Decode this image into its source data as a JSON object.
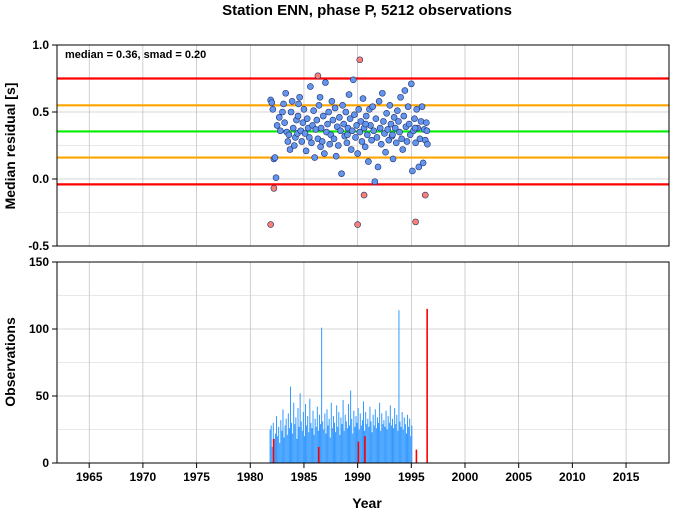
{
  "chart_data": [
    {
      "type": "scatter",
      "title": "Station ENN, phase P, 5212 observations",
      "annotation": "median = 0.36, smad = 0.20",
      "xlabel": "",
      "ylabel": "Median residual [s]",
      "xlim": [
        1962,
        2019
      ],
      "ylim": [
        -0.5,
        1.0
      ],
      "yticks": [
        -0.5,
        0.0,
        0.5,
        1.0
      ],
      "ytick_labels": [
        "-0.5",
        "0.0",
        "0.5",
        "1.0"
      ],
      "grid": true,
      "reference_lines": [
        {
          "y": 0.75,
          "color": "#ff0000"
        },
        {
          "y": 0.55,
          "color": "#ffa500"
        },
        {
          "y": 0.355,
          "color": "#00ee00"
        },
        {
          "y": 0.16,
          "color": "#ffa500"
        },
        {
          "y": -0.04,
          "color": "#ff0000"
        }
      ],
      "series": [
        {
          "color": "#6495ed",
          "points": [
            [
              1981.9,
              0.59
            ],
            [
              1982.0,
              0.57
            ],
            [
              1982.1,
              0.52
            ],
            [
              1982.2,
              0.15
            ],
            [
              1982.3,
              0.16
            ],
            [
              1982.5,
              0.4
            ],
            [
              1982.7,
              0.46
            ],
            [
              1982.8,
              0.36
            ],
            [
              1983.0,
              0.5
            ],
            [
              1983.1,
              0.56
            ],
            [
              1983.2,
              0.42
            ],
            [
              1983.3,
              0.64
            ],
            [
              1983.4,
              0.35
            ],
            [
              1983.5,
              0.28
            ],
            [
              1983.6,
              0.33
            ],
            [
              1983.7,
              0.22
            ],
            [
              1983.8,
              0.5
            ],
            [
              1983.9,
              0.58
            ],
            [
              1984.0,
              0.38
            ],
            [
              1984.1,
              0.25
            ],
            [
              1984.2,
              0.31
            ],
            [
              1984.3,
              0.44
            ],
            [
              1984.4,
              0.34
            ],
            [
              1984.5,
              0.56
            ],
            [
              1984.6,
              0.61
            ],
            [
              1984.7,
              0.36
            ],
            [
              1984.8,
              0.28
            ],
            [
              1984.9,
              0.42
            ],
            [
              1985.0,
              0.52
            ],
            [
              1985.1,
              0.34
            ],
            [
              1985.2,
              0.21
            ],
            [
              1985.3,
              0.45
            ],
            [
              1985.4,
              0.38
            ],
            [
              1985.5,
              0.31
            ],
            [
              1985.6,
              0.69
            ],
            [
              1985.7,
              0.27
            ],
            [
              1985.8,
              0.4
            ],
            [
              1985.9,
              0.51
            ],
            [
              1986.0,
              0.16
            ],
            [
              1986.1,
              0.37
            ],
            [
              1986.2,
              0.44
            ],
            [
              1986.3,
              0.3
            ],
            [
              1986.4,
              0.55
            ],
            [
              1986.5,
              0.61
            ],
            [
              1986.6,
              0.38
            ],
            [
              1986.7,
              0.28
            ],
            [
              1986.8,
              0.47
            ],
            [
              1986.9,
              0.19
            ],
            [
              1987.0,
              0.72
            ],
            [
              1987.1,
              0.35
            ],
            [
              1987.2,
              0.41
            ],
            [
              1987.3,
              0.5
            ],
            [
              1987.4,
              0.26
            ],
            [
              1987.5,
              0.33
            ],
            [
              1987.6,
              0.58
            ],
            [
              1987.7,
              0.44
            ],
            [
              1987.8,
              0.3
            ],
            [
              1987.9,
              0.53
            ],
            [
              1988.0,
              0.17
            ],
            [
              1988.1,
              0.39
            ],
            [
              1988.2,
              0.25
            ],
            [
              1988.3,
              0.46
            ],
            [
              1988.4,
              0.36
            ],
            [
              1988.5,
              0.04
            ],
            [
              1988.6,
              0.55
            ],
            [
              1988.7,
              0.41
            ],
            [
              1988.8,
              0.32
            ],
            [
              1988.9,
              0.5
            ],
            [
              1989.0,
              0.27
            ],
            [
              1989.1,
              0.38
            ],
            [
              1989.2,
              0.63
            ],
            [
              1989.3,
              0.45
            ],
            [
              1989.4,
              0.22
            ],
            [
              1989.5,
              0.36
            ],
            [
              1989.6,
              0.74
            ],
            [
              1989.7,
              0.48
            ],
            [
              1989.8,
              0.31
            ],
            [
              1989.9,
              0.4
            ],
            [
              1990.0,
              0.19
            ],
            [
              1990.1,
              0.52
            ],
            [
              1990.2,
              0.35
            ],
            [
              1990.3,
              0.43
            ],
            [
              1990.4,
              0.28
            ],
            [
              1990.5,
              0.6
            ],
            [
              1990.6,
              0.38
            ],
            [
              1990.7,
              0.24
            ],
            [
              1990.8,
              0.47
            ],
            [
              1990.9,
              0.33
            ],
            [
              1991.0,
              0.13
            ],
            [
              1991.1,
              0.52
            ],
            [
              1991.2,
              0.4
            ],
            [
              1991.3,
              0.29
            ],
            [
              1991.4,
              0.54
            ],
            [
              1991.5,
              0.36
            ],
            [
              1991.6,
              -0.02
            ],
            [
              1991.7,
              0.45
            ],
            [
              1991.8,
              0.31
            ],
            [
              1991.9,
              0.09
            ],
            [
              1992.0,
              0.58
            ],
            [
              1992.1,
              0.38
            ],
            [
              1992.2,
              0.26
            ],
            [
              1992.3,
              0.64
            ],
            [
              1992.4,
              0.43
            ],
            [
              1992.5,
              0.34
            ],
            [
              1992.6,
              0.2
            ],
            [
              1992.7,
              0.49
            ],
            [
              1992.8,
              0.37
            ],
            [
              1992.9,
              0.29
            ],
            [
              1993.0,
              0.55
            ],
            [
              1993.1,
              0.41
            ],
            [
              1993.2,
              0.32
            ],
            [
              1993.3,
              0.15
            ],
            [
              1993.4,
              0.46
            ],
            [
              1993.5,
              0.38
            ],
            [
              1993.6,
              0.27
            ],
            [
              1993.7,
              0.51
            ],
            [
              1993.8,
              0.43
            ],
            [
              1993.9,
              0.35
            ],
            [
              1994.0,
              0.61
            ],
            [
              1994.1,
              0.3
            ],
            [
              1994.2,
              0.22
            ],
            [
              1994.3,
              0.47
            ],
            [
              1994.4,
              0.66
            ],
            [
              1994.5,
              0.39
            ],
            [
              1994.6,
              0.28
            ],
            [
              1994.7,
              0.54
            ],
            [
              1994.8,
              0.41
            ],
            [
              1994.9,
              0.33
            ],
            [
              1995.0,
              0.71
            ],
            [
              1995.1,
              0.06
            ],
            [
              1995.2,
              0.36
            ],
            [
              1995.3,
              0.45
            ],
            [
              1995.4,
              0.27
            ],
            [
              1995.5,
              0.52
            ],
            [
              1995.6,
              0.38
            ],
            [
              1995.7,
              0.09
            ],
            [
              1995.8,
              0.3
            ],
            [
              1995.9,
              0.43
            ],
            [
              1996.0,
              0.54
            ],
            [
              1996.1,
              0.12
            ],
            [
              1996.2,
              0.37
            ],
            [
              1996.3,
              0.29
            ],
            [
              1996.4,
              0.42
            ],
            [
              1996.5,
              0.26
            ],
            [
              1982.4,
              0.01
            ],
            [
              1984.45,
              0.47
            ],
            [
              1986.55,
              0.24
            ],
            [
              1989.05,
              0.33
            ],
            [
              1990.75,
              0.41
            ],
            [
              1993.25,
              0.33
            ],
            [
              1995.35,
              0.38
            ],
            [
              1996.45,
              0.36
            ]
          ]
        },
        {
          "color": "#fa8072",
          "points": [
            [
              1982.2,
              -0.07
            ],
            [
              1981.9,
              -0.34
            ],
            [
              1986.3,
              0.77
            ],
            [
              1990.2,
              0.89
            ],
            [
              1990.0,
              -0.34
            ],
            [
              1990.6,
              -0.12
            ],
            [
              1995.4,
              -0.32
            ],
            [
              1996.3,
              -0.12
            ]
          ]
        }
      ]
    },
    {
      "type": "bar",
      "xlabel": "Year",
      "ylabel": "Observations",
      "xlim": [
        1962,
        2019
      ],
      "ylim": [
        0,
        150
      ],
      "xticks": [
        1965,
        1970,
        1975,
        1980,
        1985,
        1990,
        1995,
        2000,
        2005,
        2010,
        2015
      ],
      "xtick_labels": [
        "1965",
        "1970",
        "1975",
        "1980",
        "1985",
        "1990",
        "1995",
        "2000",
        "2005",
        "2010",
        "2015"
      ],
      "yticks": [
        0,
        50,
        100,
        150
      ],
      "ytick_labels": [
        "0",
        "50",
        "100",
        "150"
      ],
      "grid": true,
      "series": [
        {
          "color": "#3399ff",
          "x_start": 1981.8,
          "x_step": 0.1,
          "values": [
            25,
            28,
            12,
            30,
            18,
            22,
            35,
            20,
            27,
            15,
            32,
            24,
            40,
            19,
            28,
            33,
            21,
            37,
            26,
            57,
            30,
            22,
            45,
            29,
            34,
            18,
            41,
            27,
            52,
            31,
            24,
            38,
            20,
            44,
            28,
            35,
            23,
            48,
            30,
            26,
            39,
            21,
            33,
            27,
            42,
            24,
            36,
            29,
            101,
            31,
            25,
            37,
            22,
            40,
            28,
            33,
            19,
            45,
            26,
            35,
            30,
            23,
            43,
            27,
            38,
            21,
            34,
            29,
            47,
            24,
            36,
            31,
            26,
            44,
            28,
            54,
            33,
            22,
            39,
            27,
            35,
            30,
            41,
            25,
            37,
            28,
            32,
            46,
            24,
            38,
            29,
            33,
            27,
            42,
            31,
            23,
            36,
            28,
            40,
            26,
            34,
            30,
            45,
            24,
            37,
            29,
            32,
            27,
            39,
            25,
            35,
            30,
            43,
            28,
            33,
            26,
            41,
            29,
            36,
            24,
            114,
            31,
            27,
            38,
            25,
            34,
            29,
            22,
            36,
            27,
            33,
            20,
            28
          ]
        },
        {
          "color": "#ff0000",
          "points": [
            [
              1982.1,
              18
            ],
            [
              1986.3,
              12
            ],
            [
              1990.0,
              16
            ],
            [
              1990.6,
              20
            ],
            [
              1995.4,
              10
            ],
            [
              1996.4,
              115
            ]
          ]
        }
      ]
    }
  ]
}
